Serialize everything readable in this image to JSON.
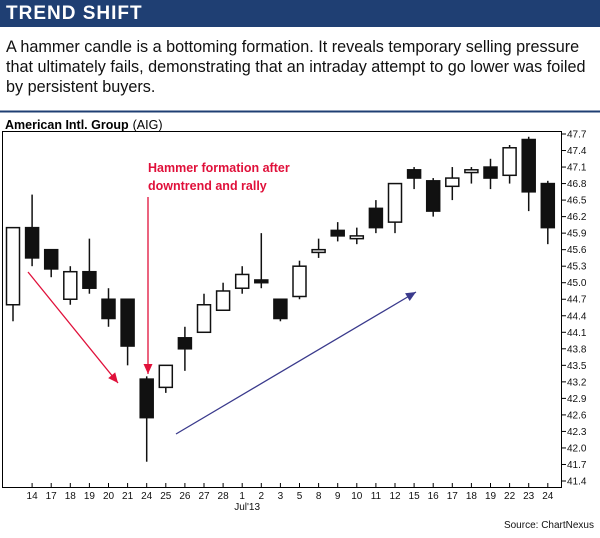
{
  "header": {
    "title": "TREND SHIFT",
    "intro": "A hammer candle is a bottoming formation. It reveals temporary selling pressure that ultimately fails, demonstrating that an intraday attempt to go lower was foiled by persistent buyers."
  },
  "chart_caption": {
    "company": "American Intl. Group",
    "ticker": "(AIG)"
  },
  "source": "Source: ChartNexus",
  "colors": {
    "header_bg": "#1f3f73",
    "down_candle": "#111111",
    "up_candle": "#ffffff",
    "annotation_red": "#e0103a",
    "arrow_blue": "#3a3a8c"
  },
  "chart_data": {
    "type": "candlestick",
    "ylim": [
      41.4,
      47.7
    ],
    "y_ticks": [
      "47.7",
      "47.4",
      "47.1",
      "46.8",
      "46.5",
      "46.2",
      "45.9",
      "45.6",
      "45.3",
      "45.0",
      "44.7",
      "44.4",
      "44.1",
      "43.8",
      "43.5",
      "43.2",
      "42.9",
      "42.6",
      "42.3",
      "42.0",
      "41.7",
      "41.4"
    ],
    "x_ticks": [
      "14",
      "17",
      "18",
      "19",
      "20",
      "21",
      "24",
      "25",
      "26",
      "27",
      "28",
      "1",
      "2",
      "3",
      "5",
      "8",
      "9",
      "10",
      "11",
      "12",
      "15",
      "16",
      "17",
      "18",
      "19",
      "22",
      "23",
      "24"
    ],
    "month_label": "Jul'13",
    "candles": [
      {
        "date": "Jun 13",
        "open": 44.6,
        "high": 46.0,
        "low": 44.3,
        "close": 46.0
      },
      {
        "date": "Jun 14",
        "open": 46.0,
        "high": 46.6,
        "low": 45.3,
        "close": 45.45
      },
      {
        "date": "Jun 17",
        "open": 45.6,
        "high": 45.6,
        "low": 45.1,
        "close": 45.25
      },
      {
        "date": "Jun 18",
        "open": 44.7,
        "high": 45.3,
        "low": 44.6,
        "close": 45.2
      },
      {
        "date": "Jun 19",
        "open": 45.2,
        "high": 45.8,
        "low": 44.8,
        "close": 44.9
      },
      {
        "date": "Jun 20",
        "open": 44.7,
        "high": 44.9,
        "low": 44.2,
        "close": 44.35
      },
      {
        "date": "Jun 21",
        "open": 44.7,
        "high": 44.7,
        "low": 43.5,
        "close": 43.85
      },
      {
        "date": "Jun 24",
        "open": 43.25,
        "high": 43.3,
        "low": 41.75,
        "close": 42.55
      },
      {
        "date": "Jun 25",
        "open": 43.1,
        "high": 43.5,
        "low": 43.0,
        "close": 43.5
      },
      {
        "date": "Jun 26",
        "open": 44.0,
        "high": 44.2,
        "low": 43.4,
        "close": 43.8
      },
      {
        "date": "Jun 27",
        "open": 44.1,
        "high": 44.8,
        "low": 44.1,
        "close": 44.6
      },
      {
        "date": "Jun 28",
        "open": 44.5,
        "high": 45.0,
        "low": 44.5,
        "close": 44.85
      },
      {
        "date": "Jul 1",
        "open": 44.9,
        "high": 45.3,
        "low": 44.8,
        "close": 45.15
      },
      {
        "date": "Jul 2",
        "open": 45.05,
        "high": 45.9,
        "low": 44.9,
        "close": 45.0
      },
      {
        "date": "Jul 3",
        "open": 44.7,
        "high": 44.7,
        "low": 44.3,
        "close": 44.35
      },
      {
        "date": "Jul 5",
        "open": 44.75,
        "high": 45.4,
        "low": 44.7,
        "close": 45.3
      },
      {
        "date": "Jul 8",
        "open": 45.55,
        "high": 45.8,
        "low": 45.45,
        "close": 45.6
      },
      {
        "date": "Jul 9",
        "open": 45.95,
        "high": 46.1,
        "low": 45.75,
        "close": 45.85
      },
      {
        "date": "Jul 10",
        "open": 45.8,
        "high": 46.0,
        "low": 45.7,
        "close": 45.85
      },
      {
        "date": "Jul 11",
        "open": 46.35,
        "high": 46.5,
        "low": 45.9,
        "close": 46.0
      },
      {
        "date": "Jul 12",
        "open": 46.1,
        "high": 46.8,
        "low": 45.9,
        "close": 46.8
      },
      {
        "date": "Jul 15",
        "open": 47.05,
        "high": 47.1,
        "low": 46.7,
        "close": 46.9
      },
      {
        "date": "Jul 16",
        "open": 46.85,
        "high": 46.9,
        "low": 46.2,
        "close": 46.3
      },
      {
        "date": "Jul 17",
        "open": 46.75,
        "high": 47.1,
        "low": 46.5,
        "close": 46.9
      },
      {
        "date": "Jul 18",
        "open": 47.0,
        "high": 47.1,
        "low": 46.8,
        "close": 47.05
      },
      {
        "date": "Jul 19",
        "open": 47.1,
        "high": 47.25,
        "low": 46.7,
        "close": 46.9
      },
      {
        "date": "Jul 22",
        "open": 46.95,
        "high": 47.5,
        "low": 46.8,
        "close": 47.45
      },
      {
        "date": "Jul 23",
        "open": 47.6,
        "high": 47.65,
        "low": 46.3,
        "close": 46.65
      },
      {
        "date": "Jul 24",
        "open": 46.8,
        "high": 46.85,
        "low": 45.7,
        "close": 46.0
      }
    ],
    "annotations": [
      {
        "text_line1": "Hammer formation after",
        "text_line2": "downtrend and rally"
      }
    ],
    "grid": false
  }
}
